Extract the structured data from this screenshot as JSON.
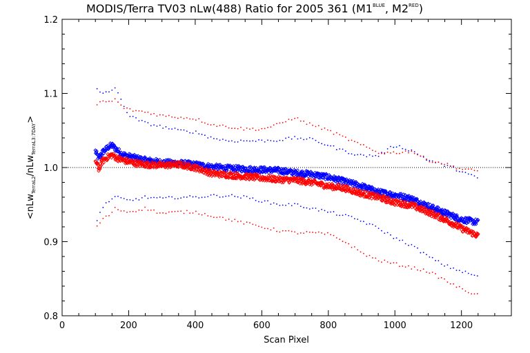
{
  "title": {
    "main": "MODIS/Terra TV03 nLw(488) Ratio for 2005 361 (M1",
    "sup1": "BLUE",
    "mid": ", M2",
    "sup2": "RED",
    "end": ")"
  },
  "xlabel": "Scan Pixel",
  "ylabel": {
    "p1": "<nLw",
    "s1": "TerraL2",
    "p2": "/nLw",
    "s2": "TerraL3:7DAY",
    "p3": ">"
  },
  "colors": {
    "blue": "#0000ff",
    "red": "#ff0000",
    "axis": "#000000"
  },
  "chart_data": {
    "type": "scatter",
    "xlim": [
      0,
      1350
    ],
    "ylim": [
      0.8,
      1.2
    ],
    "xticks": [
      0,
      200,
      400,
      600,
      800,
      1000,
      1200
    ],
    "yticks": [
      0.8,
      0.9,
      1.0,
      1.1,
      1.2
    ],
    "xtick_labels": [
      "0",
      "200",
      "400",
      "600",
      "800",
      "1000",
      "1200"
    ],
    "ytick_labels": [
      "0.8",
      "0.9",
      "1.0",
      "1.1",
      "1.2"
    ],
    "reference_line": {
      "y": 1.0,
      "style": "dotted"
    },
    "series": [
      {
        "color": "blue",
        "role": "mean",
        "marker": "diamond",
        "x": [
          100,
          110,
          120,
          130,
          140,
          150,
          160,
          170,
          180,
          200,
          220,
          250,
          300,
          350,
          400,
          450,
          500,
          550,
          600,
          650,
          700,
          750,
          800,
          850,
          900,
          950,
          1000,
          1050,
          1100,
          1150,
          1200,
          1250
        ],
        "y": [
          1.022,
          1.012,
          1.02,
          1.024,
          1.028,
          1.03,
          1.026,
          1.022,
          1.018,
          1.015,
          1.013,
          1.01,
          1.007,
          1.006,
          1.004,
          1.001,
          0.999,
          0.998,
          0.997,
          0.996,
          0.993,
          0.991,
          0.987,
          0.981,
          0.975,
          0.967,
          0.963,
          0.958,
          0.948,
          0.939,
          0.93,
          0.926
        ]
      },
      {
        "color": "red",
        "role": "mean",
        "marker": "diamond",
        "x": [
          100,
          110,
          120,
          130,
          140,
          150,
          160,
          170,
          180,
          200,
          220,
          250,
          300,
          350,
          400,
          450,
          500,
          550,
          600,
          650,
          700,
          750,
          800,
          850,
          900,
          950,
          1000,
          1050,
          1100,
          1150,
          1200,
          1250
        ],
        "y": [
          1.01,
          0.998,
          1.008,
          1.012,
          1.015,
          1.017,
          1.014,
          1.012,
          1.01,
          1.008,
          1.006,
          1.004,
          1.003,
          1.004,
          1.0,
          0.992,
          0.99,
          0.988,
          0.986,
          0.984,
          0.983,
          0.98,
          0.975,
          0.972,
          0.965,
          0.96,
          0.953,
          0.949,
          0.94,
          0.93,
          0.918,
          0.908
        ]
      },
      {
        "color": "blue",
        "role": "upper-envelope",
        "marker": "dot",
        "x": [
          105,
          120,
          140,
          160,
          180,
          200,
          250,
          300,
          350,
          400,
          450,
          500,
          550,
          600,
          650,
          700,
          750,
          800,
          850,
          900,
          950,
          1000,
          1050,
          1100,
          1150,
          1200,
          1250
        ],
        "y": [
          1.105,
          1.1,
          1.103,
          1.106,
          1.09,
          1.07,
          1.06,
          1.055,
          1.05,
          1.048,
          1.04,
          1.036,
          1.036,
          1.036,
          1.037,
          1.04,
          1.038,
          1.03,
          1.022,
          1.016,
          1.016,
          1.03,
          1.023,
          1.01,
          1.003,
          0.995,
          0.985
        ]
      },
      {
        "color": "red",
        "role": "upper-envelope",
        "marker": "dot",
        "x": [
          105,
          120,
          140,
          160,
          180,
          200,
          250,
          300,
          350,
          400,
          450,
          500,
          550,
          600,
          650,
          700,
          720,
          750,
          800,
          850,
          900,
          950,
          1000,
          1050,
          1100,
          1150,
          1200,
          1250
        ],
        "y": [
          1.085,
          1.09,
          1.088,
          1.092,
          1.082,
          1.078,
          1.075,
          1.07,
          1.068,
          1.066,
          1.058,
          1.055,
          1.052,
          1.052,
          1.058,
          1.068,
          1.062,
          1.058,
          1.05,
          1.04,
          1.03,
          1.02,
          1.02,
          1.022,
          1.01,
          1.005,
          0.998,
          0.995
        ]
      },
      {
        "color": "blue",
        "role": "lower-envelope",
        "marker": "dot",
        "x": [
          105,
          120,
          140,
          160,
          180,
          200,
          250,
          300,
          350,
          400,
          450,
          500,
          550,
          600,
          650,
          700,
          750,
          800,
          850,
          900,
          950,
          1000,
          1050,
          1100,
          1150,
          1200,
          1250
        ],
        "y": [
          0.93,
          0.945,
          0.955,
          0.96,
          0.958,
          0.955,
          0.96,
          0.958,
          0.96,
          0.96,
          0.962,
          0.962,
          0.96,
          0.955,
          0.95,
          0.95,
          0.945,
          0.94,
          0.935,
          0.928,
          0.918,
          0.905,
          0.895,
          0.88,
          0.868,
          0.86,
          0.853
        ]
      },
      {
        "color": "red",
        "role": "lower-envelope",
        "marker": "dot",
        "x": [
          105,
          120,
          140,
          160,
          180,
          200,
          250,
          300,
          350,
          400,
          450,
          500,
          550,
          600,
          650,
          700,
          750,
          800,
          850,
          900,
          950,
          1000,
          1050,
          1100,
          1150,
          1200,
          1250
        ],
        "y": [
          0.92,
          0.93,
          0.935,
          0.945,
          0.942,
          0.94,
          0.945,
          0.938,
          0.94,
          0.94,
          0.935,
          0.93,
          0.925,
          0.92,
          0.915,
          0.912,
          0.912,
          0.91,
          0.9,
          0.885,
          0.875,
          0.87,
          0.865,
          0.86,
          0.848,
          0.836,
          0.828
        ]
      }
    ]
  }
}
